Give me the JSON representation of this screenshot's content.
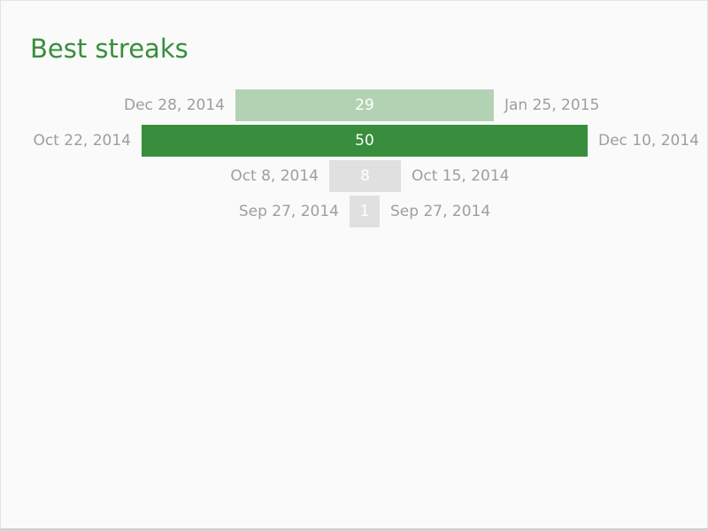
{
  "card": {
    "title": "Best streaks"
  },
  "chart_data": {
    "type": "bar",
    "orientation": "horizontal-centered",
    "title": "Best streaks",
    "max_value": 50,
    "streaks": [
      {
        "length": 29,
        "start": "Dec 28, 2014",
        "end": "Jan 25, 2015",
        "color": "#b3d2b4"
      },
      {
        "length": 50,
        "start": "Oct 22, 2014",
        "end": "Dec 10, 2014",
        "color": "#388e3c"
      },
      {
        "length": 8,
        "start": "Oct 8, 2014",
        "end": "Oct 15, 2014",
        "color": "#e0e0e0"
      },
      {
        "length": 1,
        "start": "Sep 27, 2014",
        "end": "Sep 27, 2014",
        "color": "#e0e0e0"
      }
    ]
  }
}
